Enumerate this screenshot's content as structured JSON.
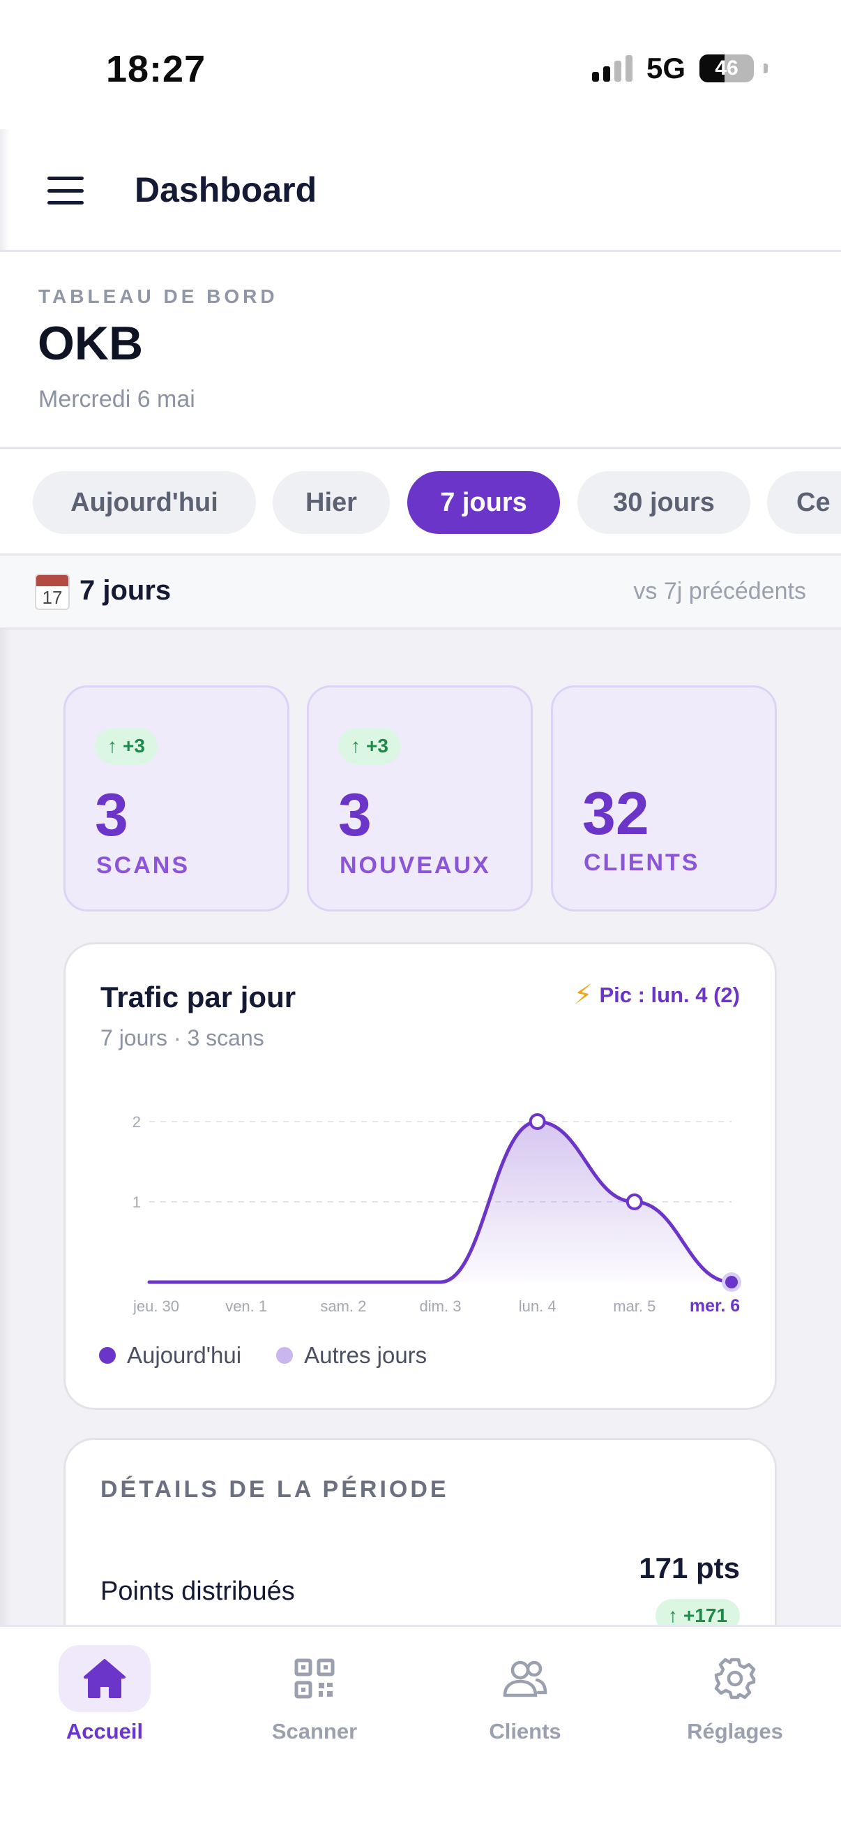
{
  "status_bar": {
    "time": "18:27",
    "network": "5G",
    "battery": "46",
    "battery_level": 0.46
  },
  "app_bar": {
    "title": "Dashboard",
    "menu_icon": "hamburger-menu-icon"
  },
  "header": {
    "overline": "TABLEAU DE BORD",
    "business_name": "OKB",
    "date": "Mercredi 6 mai"
  },
  "period_tabs": [
    {
      "label": "Aujourd'hui",
      "active": false
    },
    {
      "label": "Hier",
      "active": false
    },
    {
      "label": "7 jours",
      "active": true
    },
    {
      "label": "30 jours",
      "active": false
    },
    {
      "label": "Ce",
      "active": false
    }
  ],
  "range_bar": {
    "icon": "calendar-icon",
    "calendar_day": "17",
    "label": "7 jours",
    "comparison": "vs 7j précédents"
  },
  "stats": [
    {
      "delta": "+3",
      "value": "3",
      "label": "SCANS"
    },
    {
      "delta": "+3",
      "value": "3",
      "label": "NOUVEAUX"
    },
    {
      "delta": "",
      "value": "32",
      "label": "CLIENTS"
    }
  ],
  "traffic_card": {
    "title": "Trafic par jour",
    "subtitle": "7 jours · 3 scans",
    "peak": "Pic : lun. 4 (2)",
    "legend": [
      {
        "label": "Aujourd'hui",
        "color": "#6c35c9"
      },
      {
        "label": "Autres jours",
        "color": "#c9b6ee"
      }
    ]
  },
  "chart_data": {
    "type": "area",
    "categories": [
      "jeu. 30",
      "ven. 1",
      "sam. 2",
      "dim. 3",
      "lun. 4",
      "mar. 5",
      "mer. 6"
    ],
    "values": [
      0,
      0,
      0,
      0,
      2,
      1,
      0
    ],
    "y_ticks": [
      "2",
      "1"
    ],
    "ylim": [
      0,
      2
    ],
    "highlight_index": 6,
    "grid": true,
    "line_color": "#6c35c9"
  },
  "details_card": {
    "title": "DÉTAILS DE LA PÉRIODE",
    "rows": [
      {
        "label": "Points distribués",
        "value": "171 pts",
        "delta": "+171"
      }
    ]
  },
  "bottom_nav": [
    {
      "label": "Accueil",
      "icon": "home-icon",
      "active": true
    },
    {
      "label": "Scanner",
      "icon": "qr-code-icon",
      "active": false
    },
    {
      "label": "Clients",
      "icon": "users-icon",
      "active": false
    },
    {
      "label": "Réglages",
      "icon": "settings-gear-icon",
      "active": false
    }
  ],
  "colors": {
    "accent": "#6c35c9",
    "positive": "#1e8a4a",
    "positive_bg": "#dcf6e4",
    "stat_bg": "#efebfb"
  }
}
